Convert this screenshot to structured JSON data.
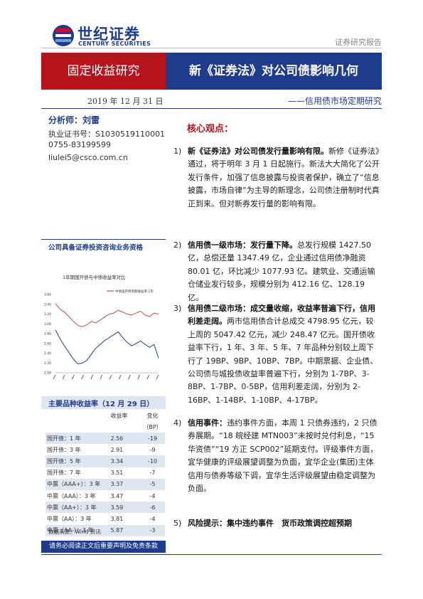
{
  "header": {
    "logo_cn": "世纪证券",
    "logo_en": "CENTURY SECURITIES",
    "report_type": "证券研究报告",
    "section": "固定收益研究",
    "title": "新《证券法》对公司债影响几何",
    "date": "2019 年 12 月 31 日",
    "subtitle": "——信用债市场定期研究"
  },
  "analyst": {
    "name": "分析师：刘雷",
    "cert": "执业证书号：S1030519110001",
    "phone": "0755-83199599",
    "email": "liulei5@csco.com.cn"
  },
  "sidebar_chart": {
    "heading": "公司具备证券投资咨询业务资格",
    "title": "1年期国开债与中债收益率对比",
    "legend_label": "中债国开债到期收益率:1年",
    "colors": {
      "top": "#c0504d",
      "bottom": "#1f3c8c"
    }
  },
  "chart_data": {
    "type": "line",
    "title": "1年期国开债与中债收益率对比",
    "y_ticks": [
      "3.60",
      "3.40",
      "3.20",
      "3.00",
      "2.80",
      "2.60",
      "2.40",
      "2.20",
      "2.00"
    ],
    "ylim": [
      2.0,
      3.6
    ],
    "series": [
      {
        "name": "中债国开债到期收益率:1年",
        "color": "#c0504d",
        "values": [
          3.42,
          3.3,
          3.24,
          3.15,
          3.05,
          2.97,
          2.94,
          2.98,
          3.05,
          3.02,
          3.08,
          3.14,
          3.2,
          3.22,
          3.28,
          3.24,
          3.2,
          3.18,
          3.22,
          3.26,
          3.18,
          3.15,
          3.22,
          3.2
        ]
      },
      {
        "color": "#1f3c8c",
        "values": [
          2.88,
          2.7,
          2.55,
          2.42,
          2.28,
          2.18,
          2.2,
          2.25,
          2.38,
          2.5,
          2.58,
          2.66,
          2.72,
          2.78,
          2.84,
          2.72,
          2.62,
          2.55,
          2.6,
          2.65,
          2.58,
          2.52,
          2.58,
          2.3
        ]
      }
    ]
  },
  "yield_table": {
    "title": "主要品种收益率（12 月 29 日）",
    "col_rate": "收益率",
    "col_change": "变化",
    "col_unit": "（BP）",
    "rows": [
      {
        "name": "国开债：1 年",
        "rate": "2.56",
        "change": "-19",
        "shade": true
      },
      {
        "name": "国开债：3 年",
        "rate": "2.91",
        "change": "-9",
        "shade": false
      },
      {
        "name": "国开债：5 年",
        "rate": "3.34",
        "change": "-10",
        "shade": true
      },
      {
        "name": "国开债：7 年",
        "rate": "3.51",
        "change": "-7",
        "shade": false
      },
      {
        "name": "中票（AAA+）：3 年",
        "rate": "3.37",
        "change": "-5",
        "shade": true
      },
      {
        "name": "中票（AAA）：3 年",
        "rate": "3.47",
        "change": "-4",
        "shade": false
      },
      {
        "name": "中票（AA+）：3 年",
        "rate": "3.59",
        "change": "-6",
        "shade": true
      },
      {
        "name": "中票（AA）：3 年",
        "rate": "3.81",
        "change": "-4",
        "shade": false
      },
      {
        "name": "中票（AA-）：3 年",
        "rate": "5.87",
        "change": "-3",
        "shade": true
      }
    ],
    "source": "数据来源：Wind 资讯"
  },
  "footer": {
    "notice": "请务必阅读正文后重要声明及免责条款"
  },
  "core": {
    "title": "核心观点：",
    "points": [
      {
        "num": "1)",
        "lead": "新《证券法》对公司债发行量影响有限。",
        "text": "新修《证券法》通过，将于明年 3 月 1 日起施行。新法大大简化了公开发行条件，加强了信息披露与投资者保护，确立了“信息披露，市场自律”为主导的新理念，公司债注册制时代真正到来。但对新券发行量的影响有限。"
      },
      {
        "num": "2)",
        "lead": "信用债一级市场：发行量下降。",
        "text": "总发行规模 1427.50 亿，总偿还量 1347.49 亿，企业通过信用债净融资 80.01 亿，环比减少 1077.93 亿。建筑业、交通运输仓储业发行较多，规模分别为 412.16 亿、128.19 亿。"
      },
      {
        "num": "3)",
        "lead": "信用债二级市场：成交量收缩，收益率普遍下行，信用利差走阔。",
        "text": "两市信用债合计总成交 4798.95 亿元，较上周的 5047.42 亿元，减少 248.47 亿元。国开债收益率下行，1 年、3 年、5 年、7 年品种分别较上周下行了 19BP、9BP、10BP、7BP。中期票据、企业债、公司债与城投债收益率普遍下行，分别为 1-7BP、3-8BP、1-7BP、0-5BP，信用利差走阔，分别为 2-16BP、1-14BP、1-10BP、4-17BP。"
      },
      {
        "num": "4)",
        "lead": "信用事件：",
        "text": "违约事件方面，本周 1 只债券违约，2 只债券展期。“18 皖经建 MTN003”未按时兑付利息，“15 华资债”“19 方正 SCP002”延期支付。评级事件方面，宜华健康的评级展望调整为负面，宜华企业(集团)主体信用与债券等级下调，宜华生活评级展望由稳定调整为负面。"
      },
      {
        "num": "5)",
        "lead": "风险提示：集中违约事件　货币政策调控超预期",
        "text": ""
      }
    ]
  }
}
